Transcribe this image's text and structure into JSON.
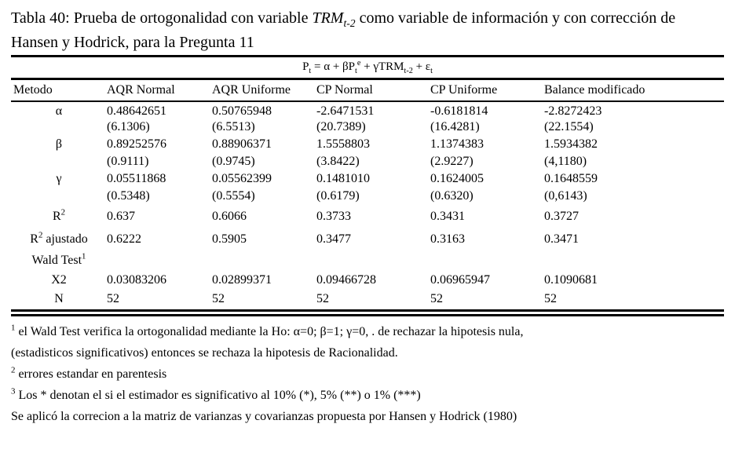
{
  "page": {
    "background": "#ffffff",
    "text_color": "#000000"
  },
  "title": {
    "segments": [
      {
        "s": "Tabla 40: Prueba de ortogonalidad con variable "
      },
      {
        "s": "TRM",
        "f": "i"
      },
      {
        "s": "t-2",
        "f": "isub"
      },
      {
        "s": " como variable de información y con corrección de Hansen y Hodrick, para la Pregunta 11"
      }
    ]
  },
  "equation": {
    "segments": [
      {
        "s": "P"
      },
      {
        "s": "t",
        "f": "sub"
      },
      {
        "s": " = α + βP"
      },
      {
        "s": "t",
        "f": "sub"
      },
      {
        "s": "e",
        "f": "sup"
      },
      {
        "s": " + γTRM"
      },
      {
        "s": "t-2",
        "f": "sub"
      },
      {
        "s": " + ε"
      },
      {
        "s": "t",
        "f": "sub"
      }
    ]
  },
  "table": {
    "columns": [
      "Metodo",
      "AQR Normal",
      "AQR Uniforme",
      "CP Normal",
      "CP Uniforme",
      "Balance modificado"
    ],
    "rows": [
      {
        "label": [
          {
            "s": "α"
          }
        ],
        "cells": [
          "0.48642651",
          "0.50765948",
          "-2.6471531",
          "-0.6181814",
          "-2.8272423"
        ]
      },
      {
        "label": [],
        "cells": [
          "(6.1306)",
          "(6.5513)",
          "(20.7389)",
          "(16.4281)",
          "(22.1554)"
        ]
      },
      {
        "label": [
          {
            "s": "β"
          }
        ],
        "cells": [
          "0.89252576",
          "0.88906371",
          "1.5558803",
          "1.1374383",
          "1.5934382"
        ]
      },
      {
        "label": [],
        "cells": [
          "(0.9111)",
          "(0.9745)",
          "(3.8422)",
          "(2.9227)",
          "(4,1180)"
        ]
      },
      {
        "label": [
          {
            "s": "γ"
          }
        ],
        "cells": [
          "0.05511868",
          "0.05562399",
          "0.1481010",
          "0.1624005",
          "0.1648559"
        ]
      },
      {
        "label": [],
        "cells": [
          "(0.5348)",
          "(0.5554)",
          "(0.6179)",
          "(0.6320)",
          "(0,6143)"
        ]
      },
      {
        "label": [
          {
            "s": "R"
          },
          {
            "s": "2",
            "f": "sup"
          }
        ],
        "cells": [
          "0.637",
          "0.6066",
          "0.3733",
          "0.3431",
          "0.3727"
        ]
      },
      {
        "label": [
          {
            "s": "R"
          },
          {
            "s": "2",
            "f": "sup"
          },
          {
            "s": " ajustado"
          }
        ],
        "cells": [
          "0.6222",
          "0.5905",
          "0.3477",
          "0.3163",
          "0.3471"
        ]
      },
      {
        "label": [
          {
            "s": "Wald Test"
          },
          {
            "s": "1",
            "f": "sup"
          }
        ],
        "cells": [
          "",
          "",
          "",
          "",
          ""
        ]
      },
      {
        "label": [
          {
            "s": "X2"
          }
        ],
        "cells": [
          "0.03083206",
          "0.02899371",
          "0.09466728",
          "0.06965947",
          "0.1090681"
        ]
      },
      {
        "label": [
          {
            "s": "N"
          }
        ],
        "cells": [
          "52",
          "52",
          "52",
          "52",
          "52"
        ]
      }
    ]
  },
  "footnotes": [
    {
      "segments": [
        {
          "s": "1",
          "f": "sup"
        },
        {
          "s": " el Wald Test verifica la ortogonalidad mediante la Ho: α=0;  β=1; γ=0, . de rechazar la hipotesis nula,"
        }
      ]
    },
    {
      "segments": [
        {
          "s": "(estadisticos significativos)  entonces se rechaza la hipotesis de Racionalidad."
        }
      ]
    },
    {
      "segments": [
        {
          "s": "2",
          "f": "sup"
        },
        {
          "s": " errores estandar en parentesis"
        }
      ]
    },
    {
      "segments": [
        {
          "s": "3",
          "f": "sup"
        },
        {
          "s": " Los * denotan el si el estimador es significativo al 10% (*), 5% (**) o 1% (***)"
        }
      ]
    },
    {
      "segments": [
        {
          "s": "Se aplicó la correcion a la matriz de varianzas y covarianzas propuesta por Hansen y Hodrick (1980)"
        }
      ]
    }
  ]
}
